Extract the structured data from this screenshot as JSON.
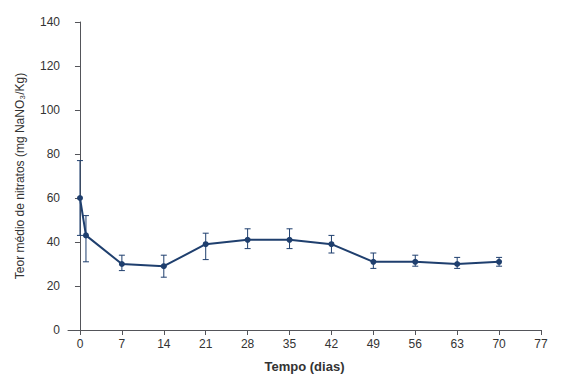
{
  "chart_data": {
    "type": "line",
    "x": [
      0,
      1,
      7,
      14,
      21,
      28,
      35,
      42,
      49,
      56,
      63,
      70
    ],
    "values": [
      60,
      43,
      30,
      29,
      39,
      41,
      41,
      39,
      31,
      31,
      30,
      31
    ],
    "yerr_upper": [
      17,
      9,
      4,
      5,
      5,
      5,
      5,
      4,
      4,
      3,
      3,
      2
    ],
    "yerr_lower": [
      17,
      12,
      3,
      5,
      7,
      4,
      4,
      4,
      3,
      2,
      2,
      2
    ],
    "color": "#1F3F6E",
    "marker": "circle",
    "line_style": "solid",
    "xlabel": "Tempo (dias)",
    "ylabel": "Teor médio de nitratos (mg NaNO₃/Kg)",
    "xlim": [
      -2,
      77
    ],
    "ylim": [
      0,
      140
    ],
    "xticks": [
      0,
      7,
      14,
      21,
      28,
      35,
      42,
      49,
      56,
      63,
      70,
      77
    ],
    "yticks": [
      0,
      20,
      40,
      60,
      80,
      100,
      120,
      140
    ],
    "grid": false
  }
}
